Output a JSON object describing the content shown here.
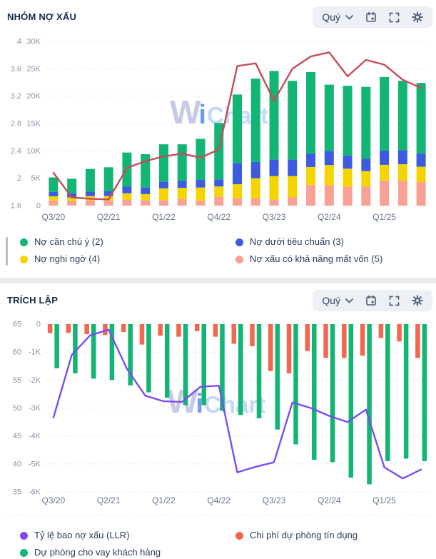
{
  "watermark": {
    "w": "W",
    "i": "i",
    "chart": "Chart"
  },
  "colors": {
    "green": "#12b573",
    "blue": "#3d5be0",
    "yellow": "#f5d500",
    "salmon": "#f9a195",
    "red_line": "#c84a5a",
    "orange_bar": "#f2674f",
    "purple_line": "#7b4df2",
    "grid": "#d6dae1",
    "axis_text": "#8a94a8",
    "x_text": "#67748e"
  },
  "charts": [
    {
      "title": "NHÓM NỢ XẤU",
      "controls": {
        "period_label": "Quý",
        "icons": [
          "chevron-down-icon",
          "calendar-icon",
          "fullscreen-icon",
          "gear-icon"
        ]
      },
      "legend": [
        {
          "label": "Nợ cần chú ý (2)",
          "color": "#12b573"
        },
        {
          "label": "Nợ dưới tiêu chuẩn (3)",
          "color": "#3d5be0"
        },
        {
          "label": "Nợ nghi ngờ (4)",
          "color": "#f5d500"
        },
        {
          "label": "Nợ xấu có khả năng mất vốn (5)",
          "color": "#f9a195"
        }
      ]
    },
    {
      "title": "TRÍCH LẬP",
      "controls": {
        "period_label": "Quý",
        "icons": [
          "chevron-down-icon",
          "calendar-icon",
          "fullscreen-icon",
          "gear-icon"
        ]
      },
      "legend": [
        {
          "label": "Tỷ lệ bao nợ xấu (LLR)",
          "color": "#7b4df2"
        },
        {
          "label": "Chi phí dự phòng tín dụng",
          "color": "#f2674f"
        },
        {
          "label": "Dự phòng cho vay khách hàng",
          "color": "#12b573"
        }
      ]
    }
  ],
  "chart_data": [
    {
      "type": "bar",
      "stacked": true,
      "title": "NHÓM NỢ XẤU",
      "categories": [
        "Q3/20",
        "Q4/20",
        "Q1/21",
        "Q2/21",
        "Q3/21",
        "Q4/21",
        "Q1/22",
        "Q2/22",
        "Q3/22",
        "Q4/22",
        "Q1/23",
        "Q2/23",
        "Q3/23",
        "Q4/23",
        "Q1/24",
        "Q2/24",
        "Q3/24",
        "Q4/24",
        "Q1/25",
        "Q2/25",
        "Q3/25"
      ],
      "x_tick_labels": [
        "Q3/20",
        "Q2/21",
        "Q1/22",
        "Q4/22",
        "Q3/23",
        "Q2/24",
        "Q1/25"
      ],
      "x_tick_indices": [
        0,
        3,
        6,
        9,
        12,
        15,
        18
      ],
      "series": [
        {
          "name": "Nợ xấu có khả năng mất vốn (5)",
          "color": "#f9a195",
          "values": [
            950,
            850,
            950,
            950,
            1100,
            1000,
            1000,
            1200,
            900,
            1600,
            1300,
            1300,
            1100,
            1500,
            3800,
            3700,
            3450,
            3500,
            4600,
            4550,
            4300
          ]
        },
        {
          "name": "Nợ nghi ngờ (4)",
          "color": "#f5d500",
          "values": [
            750,
            650,
            780,
            800,
            1150,
            1100,
            2150,
            2050,
            2400,
            1900,
            2600,
            3700,
            4300,
            3900,
            3250,
            3700,
            3300,
            2800,
            2850,
            3000,
            2800
          ]
        },
        {
          "name": "Nợ dưới tiêu chuẩn (3)",
          "color": "#3d5be0",
          "values": [
            800,
            750,
            820,
            900,
            1200,
            1200,
            1200,
            1300,
            1400,
            1300,
            3900,
            3000,
            3000,
            3000,
            2400,
            2600,
            2400,
            2250,
            2600,
            2600,
            2400
          ]
        },
        {
          "name": "Nợ cần chú ý (2)",
          "color": "#12b573",
          "values": [
            2650,
            2650,
            4150,
            4350,
            6250,
            6100,
            6850,
            6650,
            7500,
            10300,
            12500,
            15200,
            16200,
            14400,
            14950,
            12100,
            12750,
            13150,
            13450,
            12650,
            12900
          ]
        }
      ],
      "line_series": {
        "name": "Tỷ lệ nợ xấu (%)",
        "color": "#c84a5a",
        "axis": "pct",
        "values": [
          2.08,
          1.72,
          1.7,
          1.69,
          2.15,
          2.25,
          2.32,
          2.36,
          2.3,
          2.42,
          3.64,
          3.68,
          3.13,
          3.6,
          3.78,
          3.84,
          3.49,
          3.73,
          3.66,
          3.44,
          3.32
        ]
      },
      "pct_axis": {
        "ticks": [
          "4",
          "3.6",
          "3.2",
          "2.8",
          "2.4",
          "2",
          "1.6"
        ],
        "range": [
          1.6,
          4
        ]
      },
      "value_axis": {
        "ticks": [
          "30K",
          "25K",
          "20K",
          "15K",
          "10K",
          "5K",
          "0"
        ],
        "range": [
          0,
          30000
        ]
      },
      "grid": true,
      "legend_position": "bottom"
    },
    {
      "type": "bar",
      "stacked": false,
      "title": "TRÍCH LẬP",
      "categories": [
        "Q3/20",
        "Q4/20",
        "Q1/21",
        "Q2/21",
        "Q3/21",
        "Q4/21",
        "Q1/22",
        "Q2/22",
        "Q3/22",
        "Q4/22",
        "Q1/23",
        "Q2/23",
        "Q3/23",
        "Q4/23",
        "Q1/24",
        "Q2/24",
        "Q3/24",
        "Q4/24",
        "Q1/25",
        "Q2/25",
        "Q3/25"
      ],
      "x_tick_labels": [
        "Q3/20",
        "Q2/21",
        "Q1/22",
        "Q4/22",
        "Q3/23",
        "Q2/24",
        "Q1/25"
      ],
      "x_tick_indices": [
        0,
        3,
        6,
        9,
        12,
        15,
        18
      ],
      "series": [
        {
          "name": "Chi phí dự phòng tín dụng",
          "color": "#f2674f",
          "values": [
            -320,
            -310,
            -360,
            -390,
            -280,
            -730,
            -410,
            -450,
            -250,
            -450,
            -700,
            -790,
            -1680,
            -1760,
            -960,
            -1210,
            -1210,
            -1130,
            -490,
            -620,
            -1210
          ]
        },
        {
          "name": "Dự phòng cho vay khách hàng",
          "color": "#12b573",
          "values": [
            -1580,
            -1760,
            -1950,
            -2000,
            -2190,
            -2440,
            -2630,
            -2900,
            -2900,
            -3100,
            -3250,
            -3370,
            -3770,
            -4300,
            -4850,
            -4940,
            -5490,
            -5730,
            -4900,
            -4810,
            -4900
          ]
        }
      ],
      "line_series": {
        "name": "Tỷ lệ bao nợ xấu (LLR, %)",
        "color": "#7b4df2",
        "axis": "pct",
        "values": [
          48.3,
          59.5,
          63,
          64,
          57,
          52.2,
          51.2,
          51.1,
          53.8,
          54,
          38.5,
          39.5,
          40.3,
          51,
          50,
          48.6,
          47.5,
          49.7,
          39.4,
          37.4,
          39
        ]
      },
      "pct_axis": {
        "ticks": [
          "65",
          "60",
          "55",
          "50",
          "45",
          "40",
          "35"
        ],
        "range": [
          35,
          65
        ]
      },
      "value_axis": {
        "ticks": [
          "0",
          "-1K",
          "-2K",
          "-3K",
          "-4K",
          "-5K",
          "-6K"
        ],
        "range": [
          -6000,
          0
        ]
      },
      "grid": true,
      "legend_position": "bottom"
    }
  ]
}
